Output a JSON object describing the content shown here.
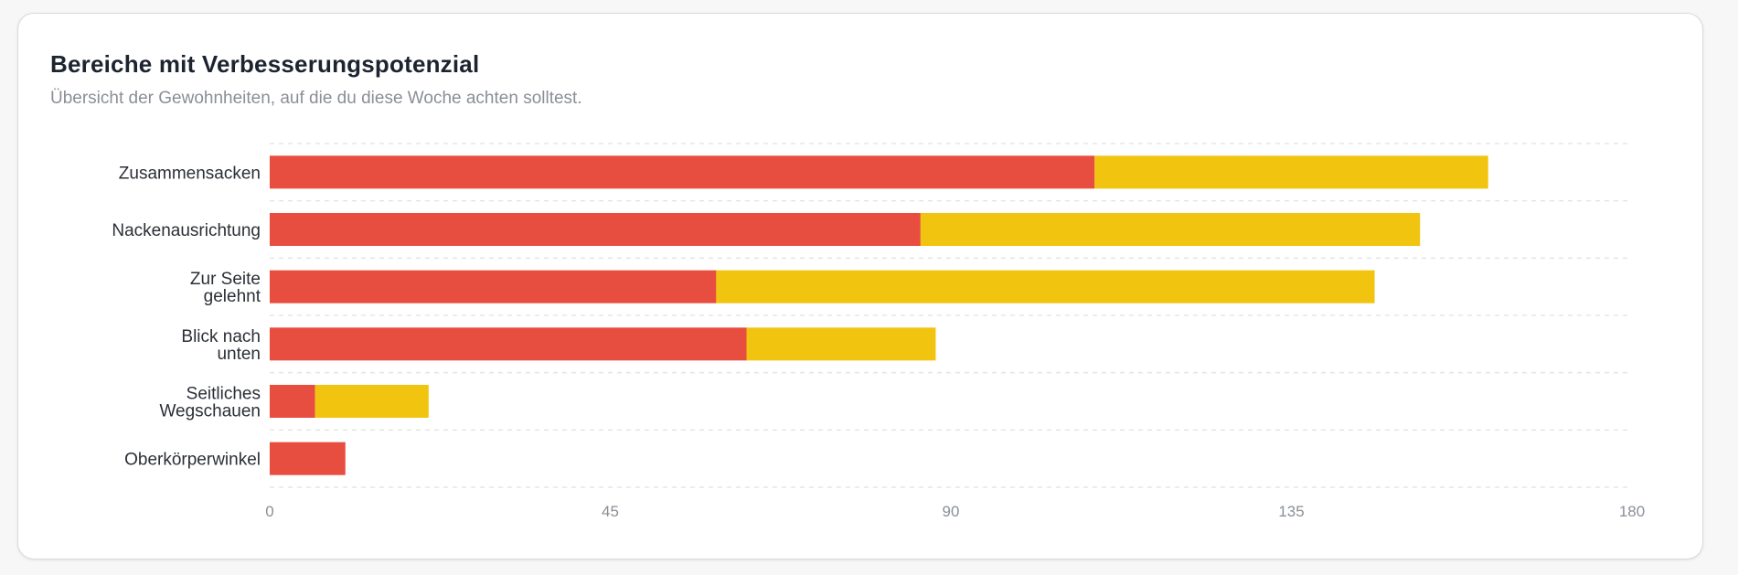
{
  "header": {
    "title": "Bereiche mit Verbesserungspotenzial",
    "subtitle": "Übersicht der Gewohnheiten, auf die du diese Woche achten solltest."
  },
  "colors": {
    "series_red": "#e84e40",
    "series_yellow": "#f1c40f",
    "grid": "#e3e5e8"
  },
  "chart_data": {
    "type": "bar",
    "orientation": "horizontal",
    "stacked": true,
    "title": "Bereiche mit Verbesserungspotenzial",
    "xlabel": "",
    "ylabel": "",
    "categories": [
      [
        "Zusammensacken"
      ],
      [
        "Nackenausrichtung"
      ],
      [
        "Zur Seite",
        "gelehnt"
      ],
      [
        "Blick nach",
        "unten"
      ],
      [
        "Seitliches",
        "Wegschauen"
      ],
      [
        "Oberkörperwinkel"
      ]
    ],
    "series": [
      {
        "color": "#e84e40",
        "values": [
          109,
          86,
          59,
          63,
          6,
          10
        ]
      },
      {
        "color": "#f1c40f",
        "values": [
          52,
          66,
          87,
          25,
          15,
          0
        ]
      }
    ],
    "xlim": [
      0,
      180
    ],
    "xticks": [
      "0",
      "45",
      "90",
      "135",
      "180"
    ],
    "grid": true,
    "legend": "none"
  }
}
